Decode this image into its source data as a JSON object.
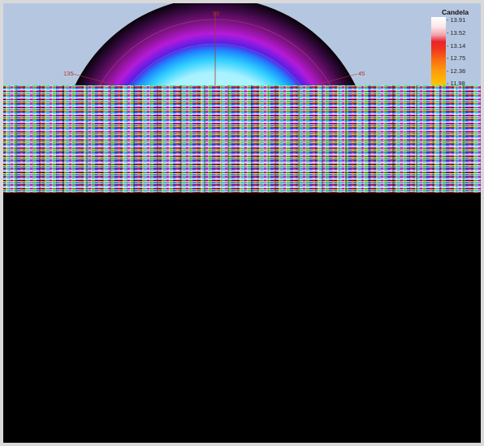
{
  "plot": {
    "angle_labels": {
      "top": "90",
      "left": "135",
      "right": "45"
    }
  },
  "legend": {
    "title": "Candela",
    "ticks": [
      "13.91",
      "13.52",
      "13.14",
      "12.75",
      "12.36",
      "11.98"
    ]
  },
  "colors": {
    "background": "#b5c7e0",
    "outer_band": "#0d0611",
    "mid_band": "#9d18d8",
    "inner_band": "#1ec5ff"
  }
}
